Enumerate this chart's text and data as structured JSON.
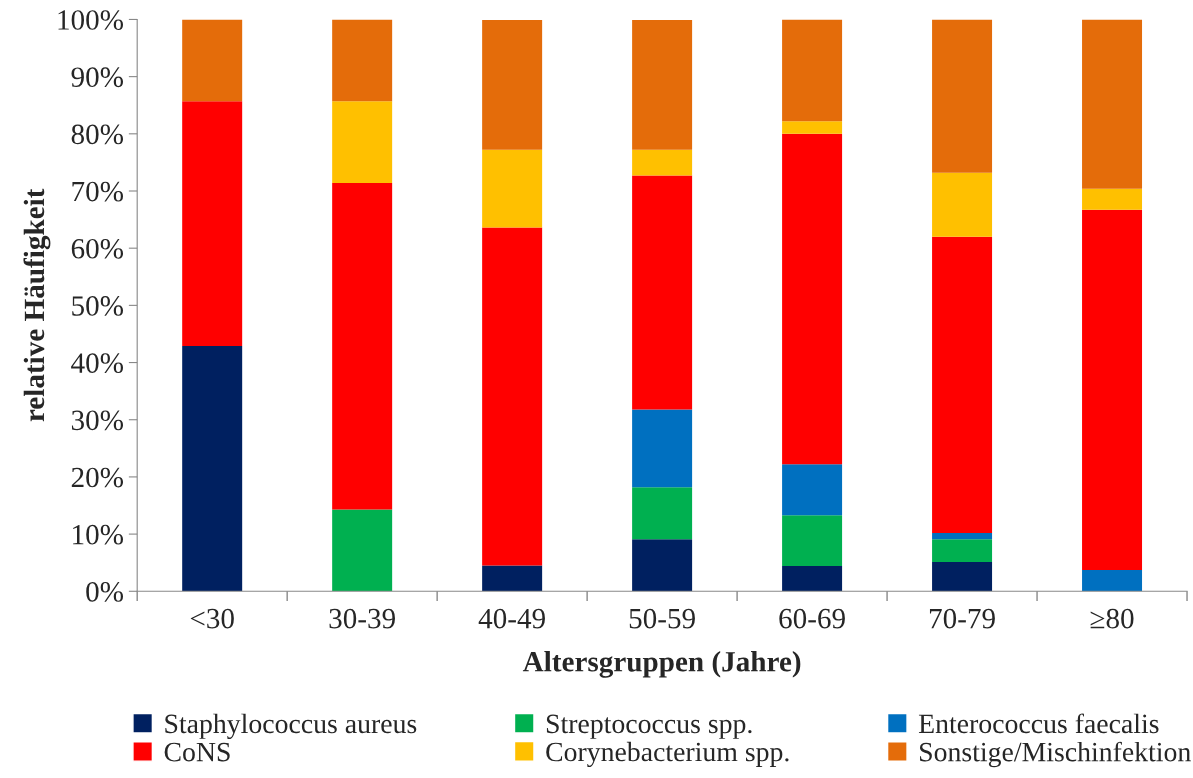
{
  "chart_data": {
    "type": "bar",
    "stacked": true,
    "xlabel": "Altersgruppen (Jahre)",
    "ylabel": "relative Häufigkeit",
    "categories": [
      "<30",
      "30-39",
      "40-49",
      "50-59",
      "60-69",
      "70-79",
      "≥80"
    ],
    "series": [
      {
        "name": "Staphylococcus aureus",
        "color": "#002060",
        "values": [
          42.9,
          0,
          4.5,
          9.1,
          4.4,
          5.1,
          0
        ]
      },
      {
        "name": "Streptococcus spp.",
        "color": "#00b050",
        "values": [
          0,
          14.3,
          0,
          9.1,
          8.9,
          4.0,
          0
        ]
      },
      {
        "name": "Enterococcus faecalis",
        "color": "#0070c0",
        "values": [
          0,
          0,
          0,
          13.6,
          8.9,
          1.1,
          3.7
        ]
      },
      {
        "name": "CoNS",
        "color": "#ff0000",
        "values": [
          42.8,
          57.1,
          59.1,
          40.9,
          57.8,
          51.8,
          63.0
        ]
      },
      {
        "name": "Corynebacterium spp.",
        "color": "#ffc000",
        "values": [
          0,
          14.3,
          13.6,
          4.5,
          2.2,
          11.2,
          3.7
        ]
      },
      {
        "name": "Sonstige/Mischinfektion",
        "color": "#e46c0a",
        "values": [
          14.3,
          14.3,
          22.7,
          22.7,
          17.8,
          26.8,
          29.6
        ]
      }
    ],
    "ylim": [
      0,
      100
    ],
    "yticks": [
      {
        "value": 0,
        "label": "0%"
      },
      {
        "value": 10,
        "label": "10%"
      },
      {
        "value": 20,
        "label": "20%"
      },
      {
        "value": 30,
        "label": "30%"
      },
      {
        "value": 40,
        "label": "40%"
      },
      {
        "value": 50,
        "label": "50%"
      },
      {
        "value": 60,
        "label": "60%"
      },
      {
        "value": 70,
        "label": "70%"
      },
      {
        "value": 80,
        "label": "80%"
      },
      {
        "value": 90,
        "label": "90%"
      },
      {
        "value": 100,
        "label": "100%"
      }
    ],
    "grid": false,
    "legend": "bottom"
  }
}
